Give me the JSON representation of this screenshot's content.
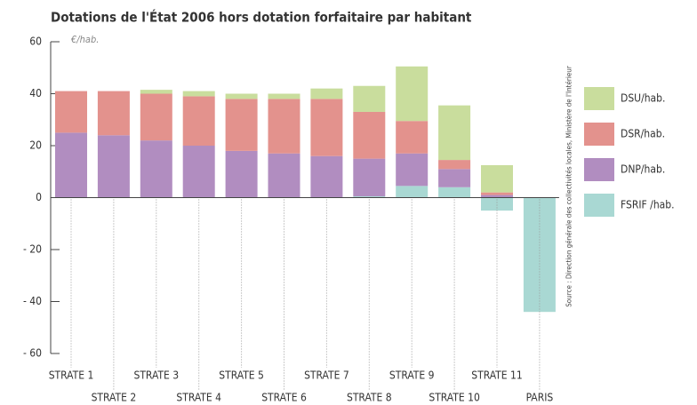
{
  "chart_data": {
    "type": "stacked_bar",
    "title": "Dotations de l'État 2006 hors dotation forfaitaire par habitant",
    "unit_label": "€/hab.",
    "source": "Source : Direction générale des collectivités locales, Ministère de l'Intérieur",
    "categories": [
      "STRATE 1",
      "STRATE 2",
      "STRATE 3",
      "STRATE 4",
      "STRATE 5",
      "STRATE 6",
      "STRATE 7",
      "STRATE 8",
      "STRATE 9",
      "STRATE 10",
      "STRATE 11",
      "PARIS"
    ],
    "series": [
      {
        "name": "FSRIF /hab.",
        "color": "#a9d8d3",
        "values": [
          0,
          0,
          0,
          0,
          0,
          0,
          0,
          0.5,
          4.5,
          4,
          -5,
          -44
        ]
      },
      {
        "name": "DNP/hab.",
        "color": "#b18dc0",
        "values": [
          25,
          24,
          22,
          20,
          18,
          17,
          16,
          14.5,
          12.5,
          7,
          1,
          0
        ]
      },
      {
        "name": "DSR/hab.",
        "color": "#e3928d",
        "values": [
          16,
          17,
          18,
          19,
          20,
          21,
          22,
          18,
          12.5,
          3.5,
          1,
          0
        ]
      },
      {
        "name": "DSU/hab.",
        "color": "#c9dd9d",
        "values": [
          0,
          0,
          1.5,
          2,
          2,
          2,
          4,
          10,
          21,
          21,
          10.5,
          0
        ]
      }
    ],
    "ylim": [
      -60,
      60
    ],
    "yticks": [
      60,
      40,
      20,
      0,
      {
        "value": -20,
        "label": "- 20"
      },
      {
        "value": -40,
        "label": "- 40"
      },
      {
        "value": -60,
        "label": "- 60"
      }
    ],
    "legend": "right"
  }
}
